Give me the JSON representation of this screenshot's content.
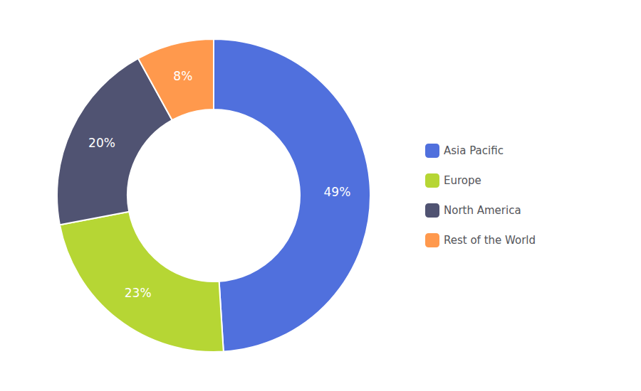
{
  "chart_data": {
    "type": "pie",
    "categories": [
      "Asia Pacific",
      "Europe",
      "North America",
      "Rest of the World"
    ],
    "values": [
      49,
      23,
      20,
      8
    ],
    "value_labels": [
      "49%",
      "23%",
      "20%",
      "8%"
    ],
    "data_labels": true,
    "legend": "right"
  }
}
